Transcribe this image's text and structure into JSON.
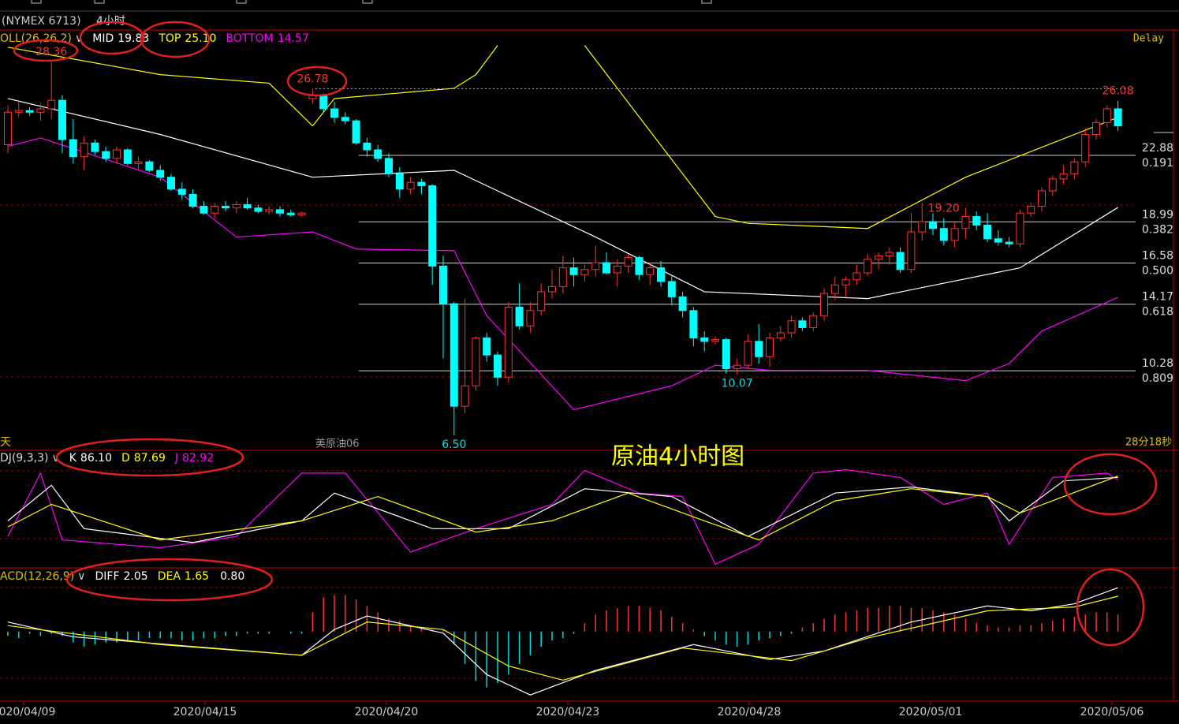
{
  "header": {
    "symbol": "(NYMEX 6713)",
    "period": "4小时",
    "delay": "Delay",
    "left_mark": "天",
    "contract": "美原油06",
    "timer": "28分18秒",
    "annotation": "原油4小时图"
  },
  "chart_data": {
    "type": "candlestick",
    "ylim": [
      5.67,
      30.12
    ],
    "up_color": "#ff3232",
    "down_color": "#00ffff",
    "candles": [
      [
        23.5,
        25.8,
        23.0,
        25.4
      ],
      [
        25.4,
        26.0,
        25.1,
        25.5
      ],
      [
        25.5,
        25.7,
        25.2,
        25.4
      ],
      [
        25.4,
        25.9,
        24.9,
        25.6
      ],
      [
        25.6,
        28.36,
        25.0,
        26.1
      ],
      [
        26.1,
        26.4,
        23.0,
        23.8
      ],
      [
        23.8,
        25.0,
        22.4,
        22.8
      ],
      [
        22.8,
        24.0,
        22.0,
        23.6
      ],
      [
        23.6,
        23.8,
        22.9,
        23.1
      ],
      [
        23.1,
        23.4,
        22.5,
        22.7
      ],
      [
        22.7,
        23.4,
        22.4,
        23.2
      ],
      [
        23.2,
        23.3,
        22.3,
        22.4
      ],
      [
        22.4,
        22.8,
        22.0,
        22.5
      ],
      [
        22.5,
        22.6,
        21.9,
        22.0
      ],
      [
        22.0,
        22.3,
        21.4,
        21.6
      ],
      [
        21.6,
        21.8,
        20.8,
        20.9
      ],
      [
        20.9,
        21.3,
        20.3,
        20.6
      ],
      [
        20.6,
        20.9,
        19.8,
        19.9
      ],
      [
        19.9,
        20.2,
        19.4,
        19.5
      ],
      [
        19.5,
        20.1,
        19.2,
        19.9
      ],
      [
        19.9,
        20.2,
        19.6,
        19.8
      ],
      [
        19.8,
        20.2,
        19.5,
        20.0
      ],
      [
        20.0,
        20.4,
        19.7,
        19.8
      ],
      [
        19.8,
        20.0,
        19.5,
        19.6
      ],
      [
        19.6,
        19.9,
        19.4,
        19.7
      ],
      [
        19.7,
        19.9,
        19.3,
        19.5
      ],
      [
        19.5,
        19.7,
        19.3,
        19.4
      ],
      [
        19.4,
        19.6,
        19.3,
        19.5
      ],
      [
        26.2,
        26.78,
        25.9,
        26.4
      ],
      [
        26.4,
        26.5,
        25.4,
        25.6
      ],
      [
        25.6,
        26.0,
        24.8,
        25.1
      ],
      [
        25.1,
        25.4,
        24.7,
        24.9
      ],
      [
        24.9,
        25.0,
        23.5,
        23.6
      ],
      [
        23.6,
        23.9,
        22.8,
        23.2
      ],
      [
        23.2,
        23.5,
        22.5,
        22.7
      ],
      [
        22.7,
        23.0,
        21.6,
        21.8
      ],
      [
        21.8,
        22.2,
        20.4,
        20.9
      ],
      [
        20.9,
        21.6,
        20.6,
        21.3
      ],
      [
        21.3,
        21.5,
        20.6,
        21.1
      ],
      [
        21.1,
        21.2,
        15.3,
        16.4
      ],
      [
        16.4,
        17.0,
        11.0,
        14.2
      ],
      [
        14.2,
        14.3,
        6.5,
        8.2
      ],
      [
        8.2,
        14.5,
        7.8,
        9.4
      ],
      [
        9.4,
        12.3,
        9.1,
        12.2
      ],
      [
        12.2,
        12.5,
        10.8,
        11.2
      ],
      [
        11.2,
        11.4,
        9.4,
        9.9
      ],
      [
        9.9,
        14.3,
        9.6,
        14.0
      ],
      [
        14.0,
        15.4,
        12.7,
        12.9
      ],
      [
        12.9,
        14.3,
        12.5,
        13.8
      ],
      [
        13.8,
        15.4,
        13.5,
        14.9
      ],
      [
        14.9,
        16.2,
        14.5,
        15.2
      ],
      [
        15.2,
        17.0,
        14.8,
        16.3
      ],
      [
        16.3,
        16.9,
        15.2,
        15.9
      ],
      [
        15.9,
        16.5,
        15.5,
        16.2
      ],
      [
        16.2,
        17.6,
        15.8,
        16.6
      ],
      [
        16.6,
        17.2,
        15.9,
        16.0
      ],
      [
        16.0,
        16.8,
        15.2,
        16.4
      ],
      [
        16.4,
        17.1,
        16.0,
        16.9
      ],
      [
        16.9,
        17.0,
        15.6,
        15.9
      ],
      [
        15.9,
        16.6,
        15.3,
        16.3
      ],
      [
        16.3,
        16.7,
        15.2,
        15.5
      ],
      [
        15.5,
        15.9,
        14.1,
        14.6
      ],
      [
        14.6,
        14.9,
        13.4,
        13.8
      ],
      [
        13.8,
        14.0,
        11.7,
        12.2
      ],
      [
        12.2,
        12.6,
        11.4,
        12.0
      ],
      [
        12.0,
        12.3,
        11.8,
        12.1
      ],
      [
        12.1,
        12.2,
        10.1,
        10.4
      ],
      [
        10.4,
        11.0,
        10.07,
        10.6
      ],
      [
        10.6,
        12.4,
        10.4,
        12.0
      ],
      [
        12.0,
        13.0,
        10.7,
        11.1
      ],
      [
        11.1,
        12.5,
        10.5,
        12.2
      ],
      [
        12.2,
        12.9,
        12.0,
        12.5
      ],
      [
        12.5,
        13.5,
        12.2,
        13.2
      ],
      [
        13.2,
        13.4,
        12.6,
        12.8
      ],
      [
        12.8,
        13.7,
        12.6,
        13.5
      ],
      [
        13.5,
        15.1,
        13.2,
        14.8
      ],
      [
        14.8,
        15.8,
        14.4,
        15.3
      ],
      [
        15.3,
        15.8,
        14.6,
        15.6
      ],
      [
        15.6,
        16.5,
        15.3,
        16.0
      ],
      [
        16.0,
        17.1,
        15.8,
        16.8
      ],
      [
        16.8,
        17.2,
        16.2,
        17.0
      ],
      [
        17.0,
        17.5,
        16.5,
        17.2
      ],
      [
        17.2,
        17.5,
        16.0,
        16.2
      ],
      [
        16.2,
        19.5,
        16.0,
        18.4
      ],
      [
        18.4,
        20.1,
        17.9,
        19.0
      ],
      [
        19.0,
        19.5,
        18.2,
        18.6
      ],
      [
        18.6,
        19.2,
        17.6,
        17.9
      ],
      [
        17.9,
        19.0,
        17.5,
        18.6
      ],
      [
        18.6,
        19.8,
        18.0,
        19.3
      ],
      [
        19.3,
        19.6,
        18.5,
        18.8
      ],
      [
        18.8,
        19.5,
        17.8,
        18.0
      ],
      [
        18.0,
        18.5,
        17.6,
        17.8
      ],
      [
        17.8,
        18.1,
        17.5,
        17.7
      ],
      [
        17.7,
        19.7,
        17.5,
        19.5
      ],
      [
        19.5,
        20.1,
        19.3,
        19.9
      ],
      [
        19.9,
        21.0,
        19.6,
        20.8
      ],
      [
        20.8,
        21.7,
        20.5,
        21.5
      ],
      [
        21.5,
        22.3,
        21.2,
        21.8
      ],
      [
        21.8,
        22.7,
        21.5,
        22.5
      ],
      [
        22.5,
        24.5,
        22.2,
        24.1
      ],
      [
        24.1,
        25.0,
        23.8,
        24.8
      ],
      [
        24.8,
        25.8,
        24.5,
        25.6
      ],
      [
        25.6,
        26.08,
        24.3,
        24.6
      ]
    ],
    "indicator": {
      "name": "OLL(26,26,2)",
      "items": [
        {
          "name": "MID",
          "value": 19.83,
          "color": "#ffffff"
        },
        {
          "name": "TOP",
          "value": {
            "value": 25.1,
            "label": "25.10"
          },
          "color": "#ffff00"
        },
        {
          "name": "BOTTOM",
          "value": 14.57,
          "color": "#ff00ff"
        }
      ]
    },
    "bands": [
      {
        "color": "#ffffff",
        "x": [
          0,
          14,
          28,
          41,
          54,
          64,
          79,
          93,
          102
        ],
        "values": [
          26.2,
          24.1,
          21.6,
          22.0,
          18.1,
          14.9,
          14.5,
          16.3,
          19.83
        ]
      },
      {
        "color": "#ffff00",
        "x": [
          0,
          14,
          24,
          28,
          30,
          41,
          43,
          45,
          46,
          53,
          65,
          68,
          79,
          88,
          102
        ],
        "values": [
          29.2,
          27.6,
          27.1,
          24.6,
          26.2,
          26.8,
          27.6,
          29.3,
          null,
          29.3,
          19.3,
          18.9,
          18.6,
          21.6,
          25.1
        ]
      },
      {
        "color": "#ff00ff",
        "x": [
          0,
          3,
          14,
          21,
          28,
          32,
          41,
          44,
          52,
          61,
          65,
          70,
          79,
          88,
          92,
          95,
          102
        ],
        "values": [
          23.4,
          23.9,
          21.6,
          18.1,
          18.4,
          17.4,
          17.3,
          13.5,
          8.0,
          9.4,
          10.6,
          10.3,
          10.3,
          9.7,
          10.7,
          12.6,
          14.57
        ]
      }
    ],
    "price_labels": [
      28.36,
      26.78,
      26.08,
      {
        "value": 19.2,
        "label": "19.20"
      },
      {
        "value": 6.5,
        "label": "6.50"
      },
      10.07
    ],
    "fib_levels": [
      {
        "price": 22.88,
        "ratio": 0.191
      },
      {
        "price": 18.99,
        "ratio": 0.382
      },
      {
        "price": 16.58,
        "ratio": {
          "value": 0.5,
          "label": "0.500"
        }
      },
      {
        "price": 14.17,
        "ratio": 0.618
      },
      {
        "price": 10.28,
        "ratio": 0.809
      }
    ],
    "dates": [
      "2020/04/09",
      "2020/04/15",
      "2020/04/20",
      "2020/04/23",
      "2020/04/28",
      "2020/05/01",
      "2020/05/06"
    ]
  },
  "kdj": {
    "name": "DJ(9,3,3)",
    "ylim": [
      0,
      100
    ],
    "items": [
      {
        "name": "K",
        "value": {
          "value": 86.1,
          "label": "86.10"
        },
        "color": "#ffffff"
      },
      {
        "name": "D",
        "value": 87.69,
        "color": "#ffff00"
      },
      {
        "name": "J",
        "value": 82.92,
        "color": "#ff00ff"
      }
    ],
    "lines": [
      {
        "color": "#ff00ff",
        "x": [
          0,
          3,
          5,
          14,
          21,
          27,
          31,
          37,
          43,
          50,
          53,
          58,
          62,
          65,
          69,
          74,
          77,
          82,
          86,
          90,
          92,
          96,
          101,
          102
        ],
        "values": [
          18,
          91,
          14,
          5,
          18,
          91,
          91,
          0,
          27,
          55,
          94,
          68,
          64,
          -14,
          9,
          91,
          95,
          86,
          55,
          68,
          9,
          86,
          91,
          82.92
        ]
      },
      {
        "color": "#ffffff",
        "x": [
          0,
          4,
          7,
          17,
          27,
          30,
          39,
          46,
          53,
          61,
          68,
          76,
          83,
          90,
          92,
          97,
          102
        ],
        "values": [
          36,
          77,
          27,
          11,
          36,
          68,
          27,
          27,
          73,
          64,
          18,
          68,
          75,
          64,
          36,
          82,
          86.1
        ]
      },
      {
        "color": "#ffff00",
        "x": [
          0,
          4,
          14,
          27,
          34,
          43,
          50,
          57,
          64,
          69,
          76,
          83,
          90,
          93,
          102
        ],
        "values": [
          29,
          55,
          14,
          36,
          64,
          23,
          36,
          68,
          36,
          14,
          59,
          73,
          64,
          45,
          87.69
        ]
      }
    ]
  },
  "macd": {
    "name": "ACD(12,26,9)",
    "ylim": [
      -3.2,
      2.9
    ],
    "items": [
      {
        "name": "DIFF",
        "value": 2.05,
        "color": "#ffffff"
      },
      {
        "name": "DEA",
        "value": 1.65,
        "color": "#ffff00"
      },
      {
        "name": null,
        "value": {
          "value": 0.8,
          "label": "0.80"
        },
        "color": "#ffffff"
      }
    ],
    "histogram": [
      -0.2,
      -0.3,
      -0.1,
      -0.2,
      -0.1,
      -0.2,
      -0.5,
      -0.7,
      -0.6,
      -0.5,
      -0.5,
      -0.4,
      -0.4,
      -0.3,
      -0.3,
      -0.3,
      -0.4,
      -0.4,
      -0.3,
      -0.3,
      -0.2,
      -0.2,
      -0.1,
      -0.1,
      -0.1,
      0.0,
      -0.1,
      -0.1,
      0.9,
      1.6,
      1.7,
      1.7,
      1.5,
      1.2,
      0.9,
      0.6,
      0.5,
      0.3,
      0.2,
      0.1,
      0.1,
      -0.6,
      -1.5,
      -2.3,
      -2.6,
      -2.4,
      -2.0,
      -1.5,
      -1.1,
      -0.7,
      -0.4,
      -0.3,
      -0.1,
      0.4,
      0.8,
      1.0,
      1.1,
      1.2,
      1.2,
      1.1,
      1.0,
      0.7,
      0.4,
      0.1,
      -0.2,
      -0.4,
      -0.6,
      -0.7,
      -0.6,
      -0.4,
      -0.3,
      -0.2,
      -0.1,
      0.2,
      0.4,
      0.6,
      0.8,
      0.9,
      1.0,
      1.1,
      1.1,
      1.2,
      1.2,
      1.1,
      1.1,
      1.0,
      0.9,
      0.8,
      0.6,
      0.4,
      0.3,
      0.2,
      0.2,
      0.3,
      0.3,
      0.4,
      0.5,
      0.6,
      0.7,
      0.8,
      0.9,
      0.9,
      0.8
    ],
    "lines": [
      {
        "color": "#ffffff",
        "x": [
          0,
          6,
          27,
          30,
          33,
          40,
          44,
          48,
          54,
          63,
          70,
          75,
          83,
          90,
          94,
          98,
          102
        ],
        "values": [
          0.45,
          -0.24,
          -1.1,
          0.1,
          0.73,
          -0.07,
          -2.0,
          -2.95,
          -1.8,
          -0.6,
          -1.3,
          -0.9,
          0.45,
          1.2,
          0.97,
          1.3,
          2.05
        ]
      },
      {
        "color": "#ffff00",
        "x": [
          0,
          14,
          27,
          33,
          40,
          46,
          51,
          62,
          72,
          79,
          90,
          98,
          102
        ],
        "values": [
          0.28,
          -0.6,
          -1.1,
          0.45,
          0.1,
          -1.6,
          -2.26,
          -0.76,
          -1.35,
          -0.3,
          0.97,
          1.15,
          1.65
        ]
      }
    ]
  }
}
